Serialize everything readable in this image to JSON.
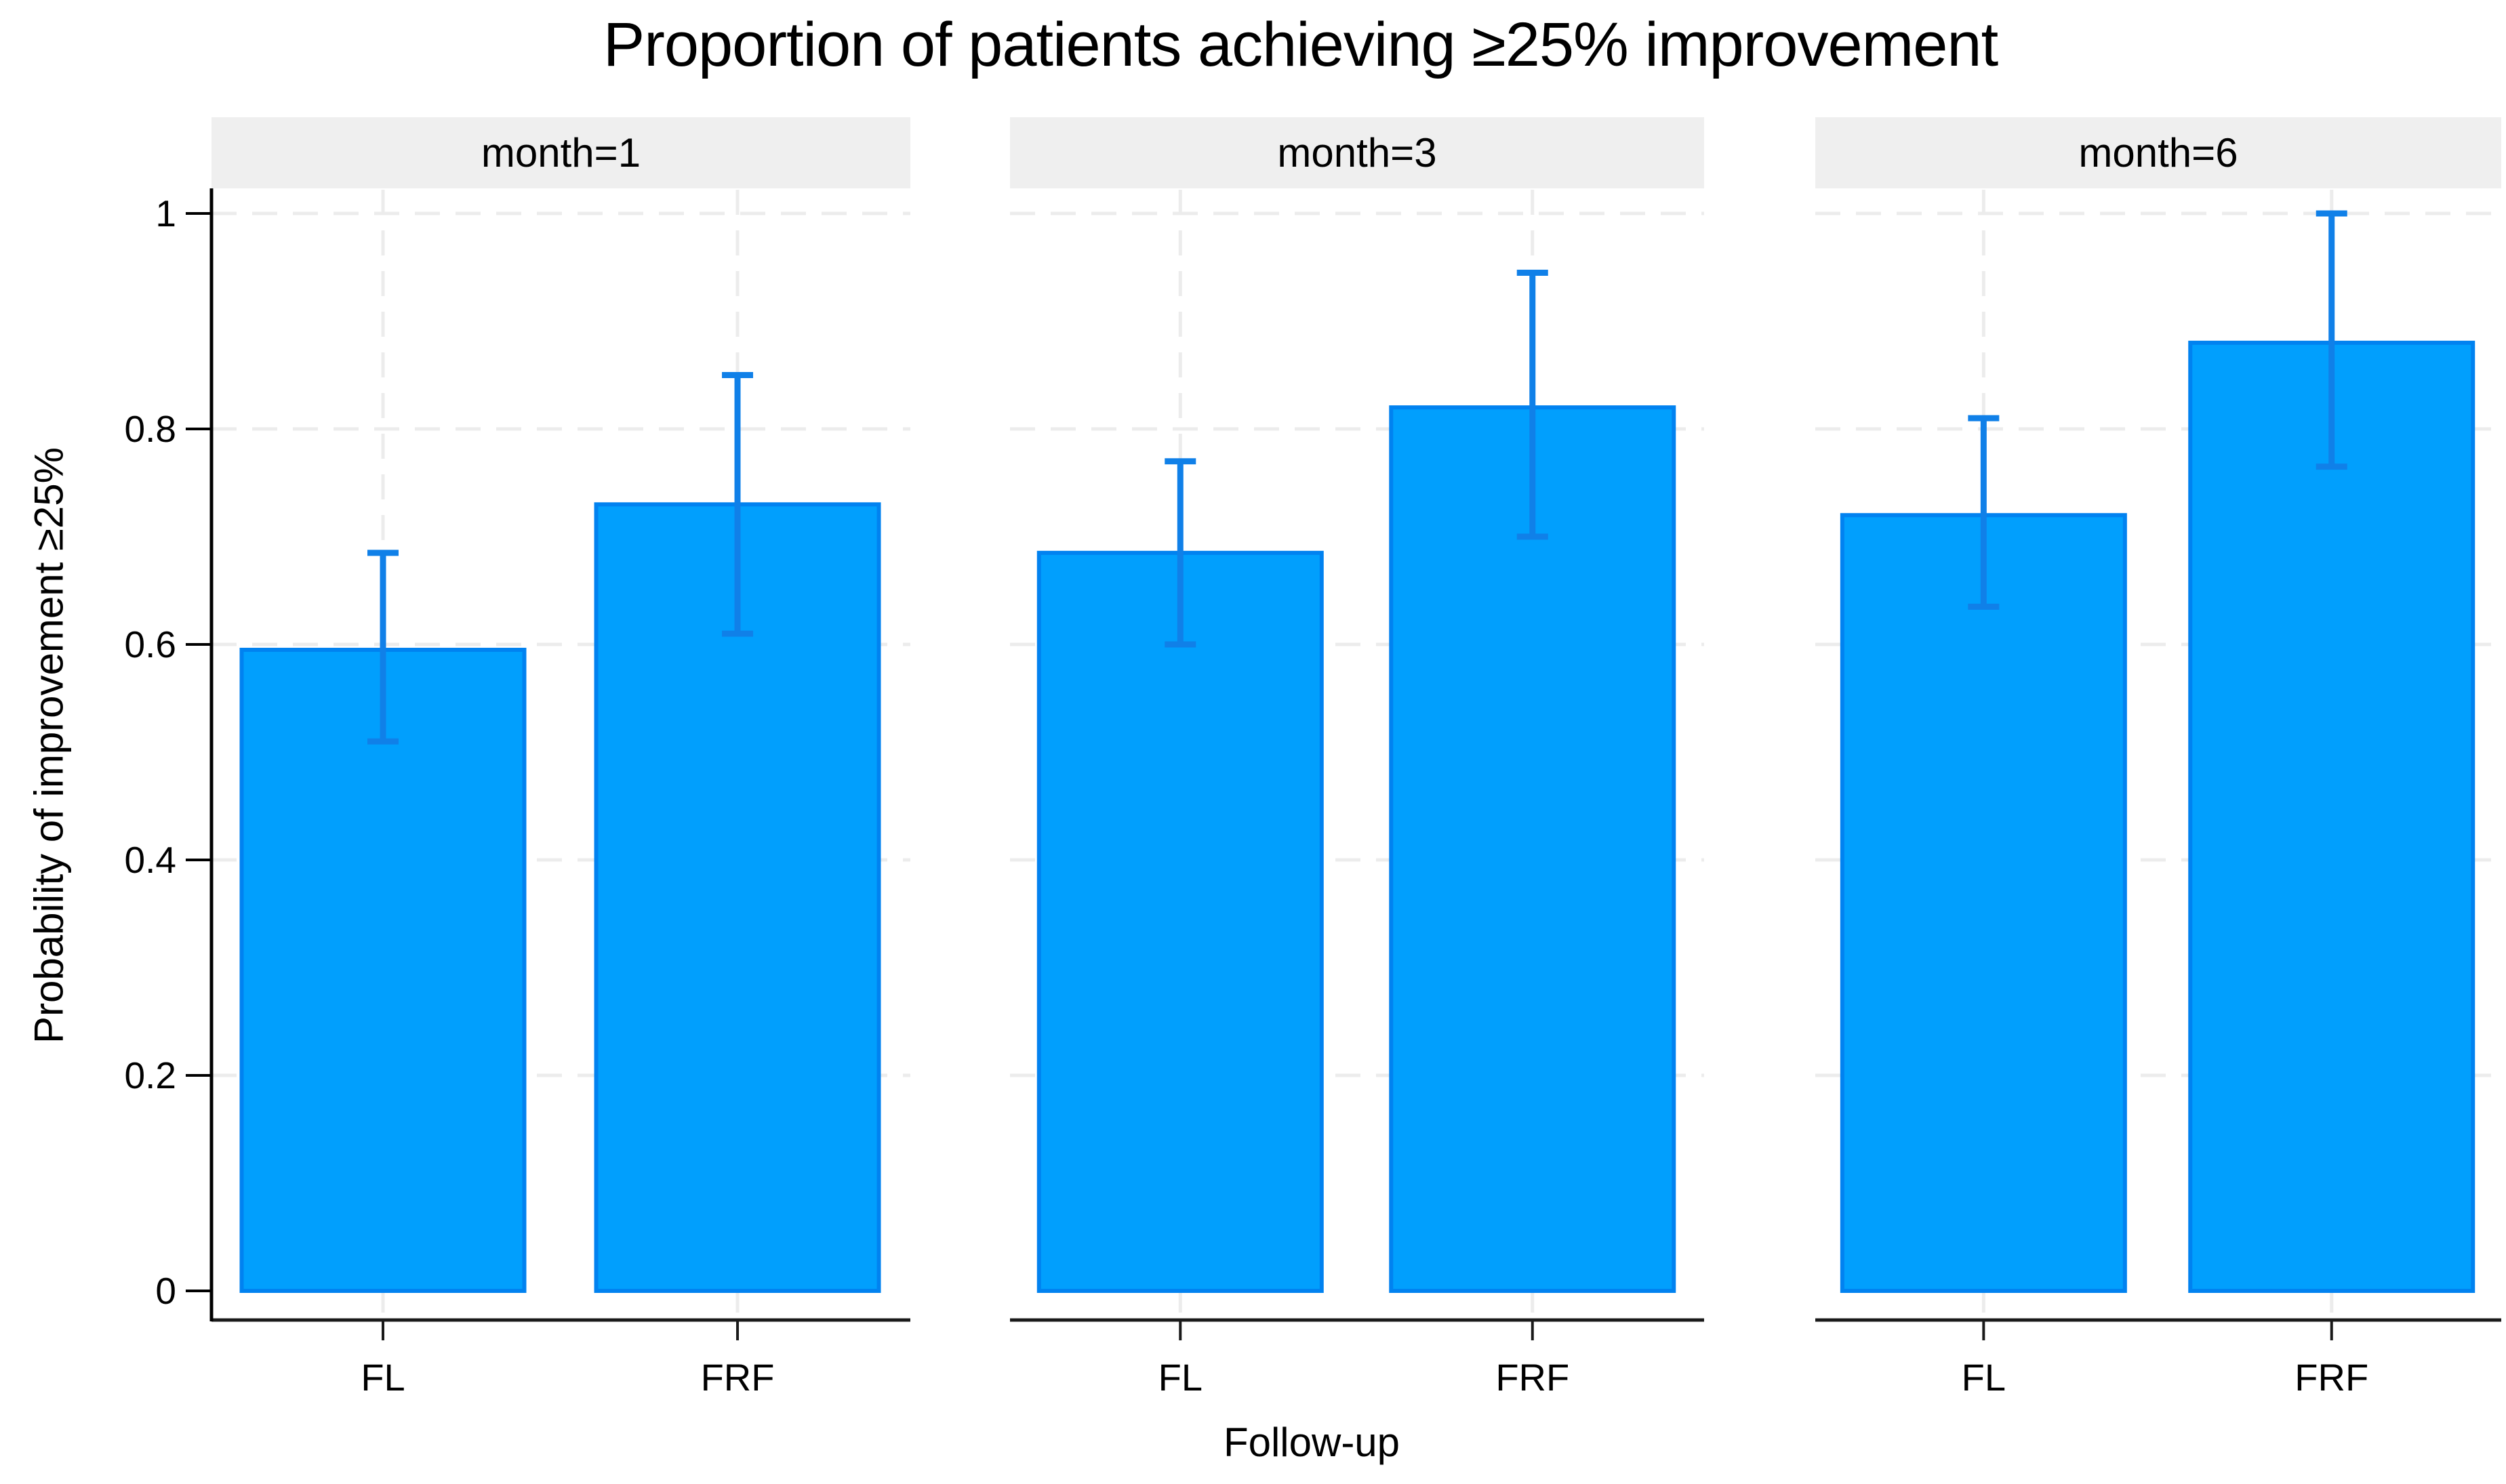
{
  "title": "Proportion of patients achieving ≥25% improvement",
  "chart_data": {
    "type": "bar",
    "facet_by": "month",
    "categories": [
      "FL",
      "FRF"
    ],
    "xlabel": "Follow-up",
    "ylabel": "Probability of improvement ≥25%",
    "ylim": [
      0,
      1
    ],
    "yticks": [
      0,
      0.2,
      0.4,
      0.6,
      0.8,
      1
    ],
    "ytick_labels": [
      "0",
      "0.2",
      "0.4",
      "0.6",
      "0.8",
      "1"
    ],
    "grid": "light dashed horizontal gridlines at 0.2 steps, light dashed vertical gridlines at bar centers",
    "legend": "none",
    "error_bars": "95% CI with caps",
    "panels": [
      {
        "label": "month=1",
        "series": [
          {
            "category": "FL",
            "value": 0.595,
            "ci_low": 0.51,
            "ci_high": 0.685
          },
          {
            "category": "FRF",
            "value": 0.73,
            "ci_low": 0.61,
            "ci_high": 0.85
          }
        ]
      },
      {
        "label": "month=3",
        "series": [
          {
            "category": "FL",
            "value": 0.685,
            "ci_low": 0.6,
            "ci_high": 0.77
          },
          {
            "category": "FRF",
            "value": 0.82,
            "ci_low": 0.7,
            "ci_high": 0.945
          }
        ]
      },
      {
        "label": "month=6",
        "series": [
          {
            "category": "FL",
            "value": 0.72,
            "ci_low": 0.635,
            "ci_high": 0.81
          },
          {
            "category": "FRF",
            "value": 0.88,
            "ci_low": 0.765,
            "ci_high": 1.0
          }
        ]
      }
    ],
    "colors": {
      "bar_fill": "#019ffd",
      "bar_border": "#0182f0",
      "error_bar": "#1080e8",
      "strip_bg": "#efefef",
      "grid": "#ececec",
      "axis": "#1a1a1a",
      "text": "#000000"
    }
  }
}
